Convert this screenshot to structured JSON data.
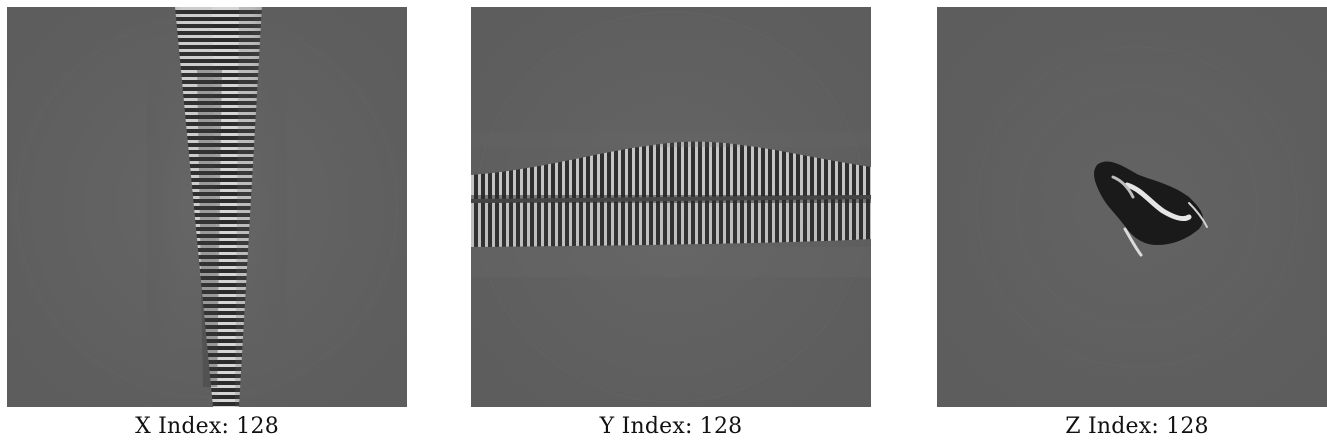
{
  "slices": [
    {
      "axis": "X",
      "caption": "X Index: 128",
      "description_icon": "image-slice-x"
    },
    {
      "axis": "Y",
      "caption": "Y Index: 128",
      "description_icon": "image-slice-y"
    },
    {
      "axis": "Z",
      "caption": "Z Index: 128",
      "description_icon": "image-slice-z"
    }
  ],
  "colors": {
    "background_gray": "#5f5f5f",
    "fringe_light": "#d8d8d8",
    "fringe_dark": "#1e1e1e",
    "caption_text": "#111111"
  }
}
